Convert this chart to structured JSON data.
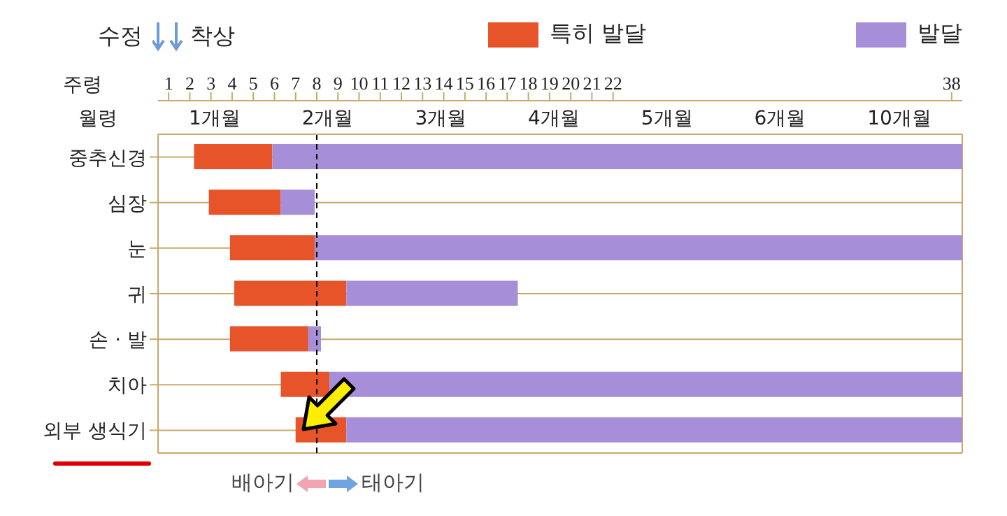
{
  "chart_data": {
    "type": "bar",
    "orientation": "horizontal",
    "categories": [
      "중추신경",
      "심장",
      "눈",
      "귀",
      "손 · 발",
      "치아",
      "외부 생식기"
    ],
    "series": [
      {
        "name": "특히 발달",
        "color": "#e8542a",
        "base": [
          2.2,
          2.9,
          3.9,
          4.1,
          3.9,
          6.3,
          7.0
        ],
        "values": [
          3.7,
          3.4,
          4.0,
          5.3,
          3.7,
          2.3,
          2.4
        ]
      },
      {
        "name": "발달",
        "color": "#a68fd8",
        "base": [
          5.9,
          6.3,
          7.9,
          9.4,
          7.6,
          8.6,
          9.4
        ],
        "values": [
          32.6,
          1.6,
          30.6,
          8.1,
          0.6,
          29.9,
          29.1
        ]
      }
    ],
    "xlabel": "주령",
    "xlim": [
      0.5,
      38.5
    ],
    "xticks": [
      1,
      2,
      3,
      4,
      5,
      6,
      7,
      8,
      9,
      10,
      11,
      12,
      13,
      14,
      15,
      16,
      17,
      18,
      19,
      20,
      21,
      22,
      38
    ],
    "ref_lines": [
      {
        "axis": "x",
        "value": 8,
        "color": "#000000",
        "line_style": "dashed"
      }
    ],
    "annotations": [
      "수정",
      "착상",
      "배아기",
      "태아기",
      "월령",
      "1개월",
      "2개월",
      "3개월",
      "4개월",
      "5개월",
      "6개월",
      "10개월"
    ],
    "grid": true,
    "legend": "top right"
  }
}
